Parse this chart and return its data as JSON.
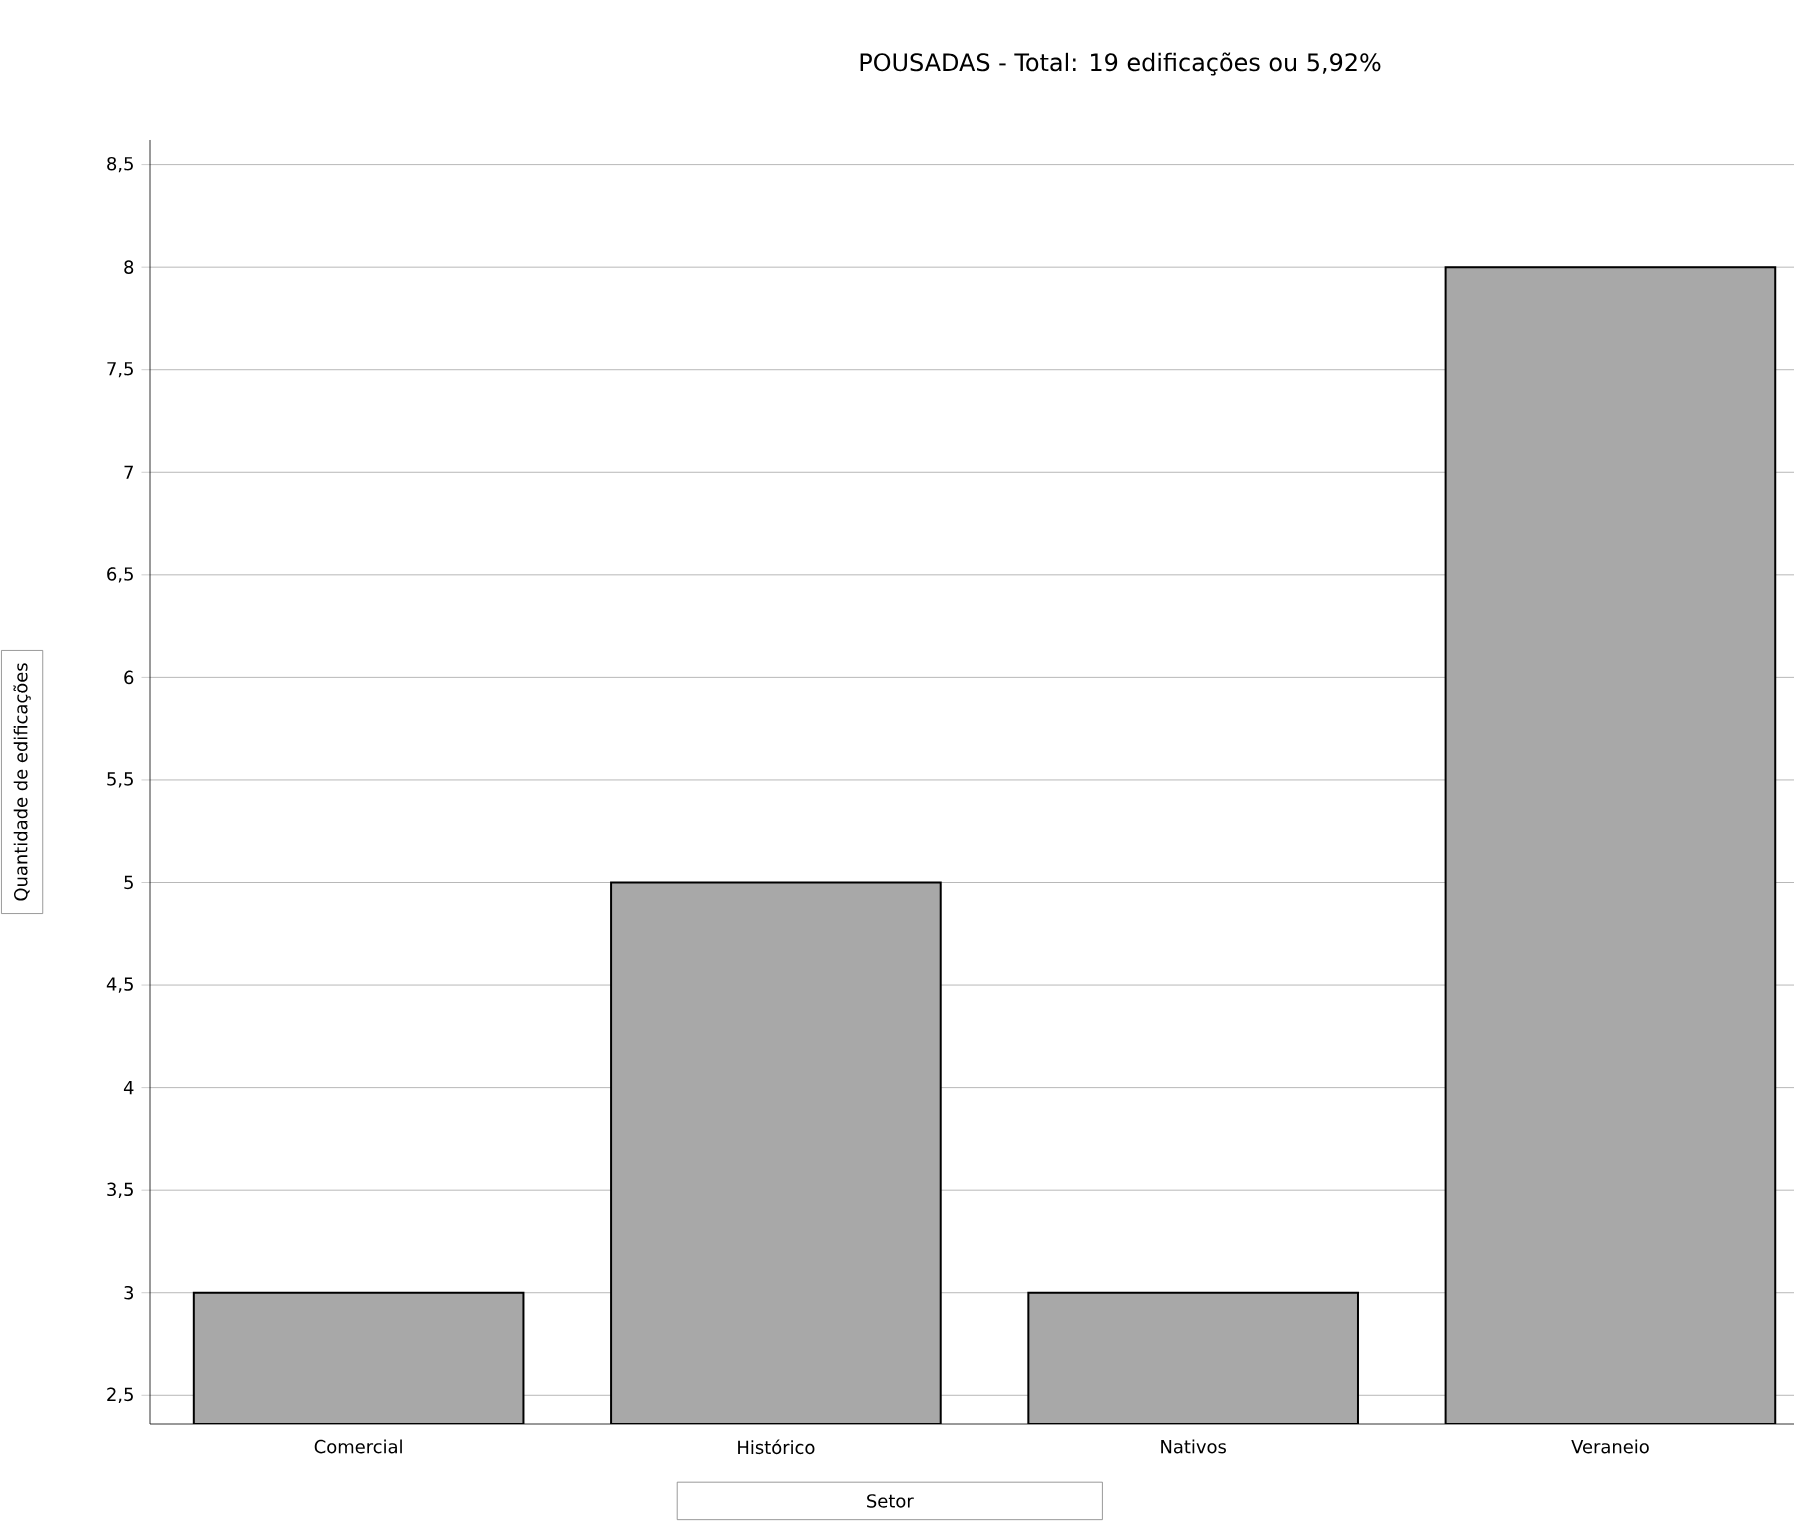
{
  "chart_data": {
    "type": "bar",
    "title": "POUSADAS - Total: 19 edificações ou 5,92%",
    "xlabel": "Setor",
    "ylabel": "Quantidade de edificações",
    "categories": [
      "Comercial",
      "Histórico",
      "Nativos",
      "Veraneio"
    ],
    "values": [
      3,
      5,
      3,
      8
    ],
    "color": "#a8a8a8",
    "ylim": [
      2.36,
      8.62
    ],
    "yticks": [
      {
        "value": 2.5,
        "label": "2,5"
      },
      3,
      {
        "value": 3.5,
        "label": "3,5"
      },
      4,
      {
        "value": 4.5,
        "label": "4,5"
      },
      5,
      {
        "value": 5.5,
        "label": "5,5"
      },
      6,
      {
        "value": 6.5,
        "label": "6,5"
      },
      7,
      {
        "value": 7.5,
        "label": "7,5"
      },
      8,
      {
        "value": 8.5,
        "label": "8,5"
      }
    ],
    "grid": "y"
  }
}
